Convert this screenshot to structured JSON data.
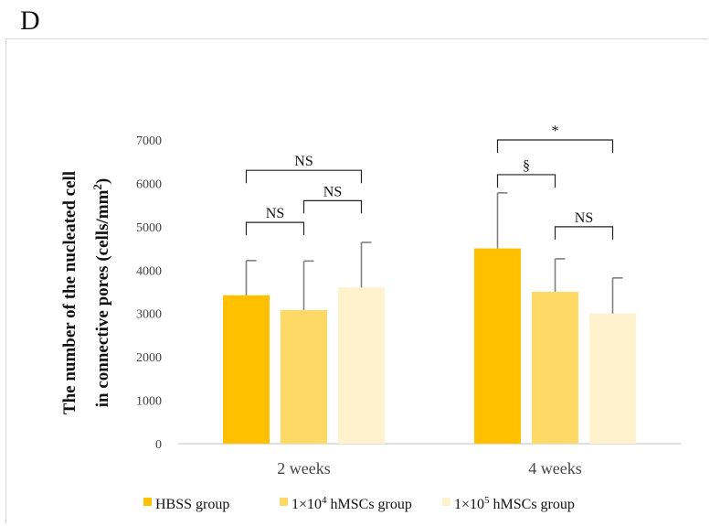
{
  "panel_letter": "D",
  "chart_data": {
    "type": "bar",
    "categories": [
      "2 weeks",
      "4 weeks"
    ],
    "ylabel_line1": "The number of the nucleated cell",
    "ylabel_line2_pre": "in connective pores (cells/mm",
    "ylabel_sup": "2",
    "ylabel_line2_post": ")",
    "ylim": [
      0,
      7000
    ],
    "yticks": [
      0,
      1000,
      2000,
      3000,
      4000,
      5000,
      6000,
      7000
    ],
    "series": [
      {
        "legend_pre": "HBSS group",
        "legend_sup": "",
        "legend_post": "",
        "color": "#FFC000",
        "values": [
          3420,
          4500
        ],
        "errors": [
          800,
          1280
        ]
      },
      {
        "legend_pre": "1×10",
        "legend_sup": "4",
        "legend_post": " hMSCs group",
        "color": "#FFD966",
        "values": [
          3080,
          3500
        ],
        "errors": [
          1130,
          760
        ]
      },
      {
        "legend_pre": "1×10",
        "legend_sup": "5",
        "legend_post": " hMSCs group",
        "color": "#FFF2CC",
        "values": [
          3600,
          3000
        ],
        "errors": [
          1040,
          820
        ]
      }
    ],
    "significance": [
      {
        "category": 0,
        "from": 0,
        "to": 1,
        "level": 5100,
        "label": "NS"
      },
      {
        "category": 0,
        "from": 1,
        "to": 2,
        "level": 5600,
        "label": "NS"
      },
      {
        "category": 0,
        "from": 0,
        "to": 2,
        "level": 6300,
        "label": "NS"
      },
      {
        "category": 1,
        "from": 0,
        "to": 1,
        "level": 6200,
        "label": "§"
      },
      {
        "category": 1,
        "from": 1,
        "to": 2,
        "level": 5000,
        "label": "NS"
      },
      {
        "category": 1,
        "from": 0,
        "to": 2,
        "level": 7000,
        "label": "*"
      }
    ],
    "legend_position": "bottom",
    "grid": false
  }
}
